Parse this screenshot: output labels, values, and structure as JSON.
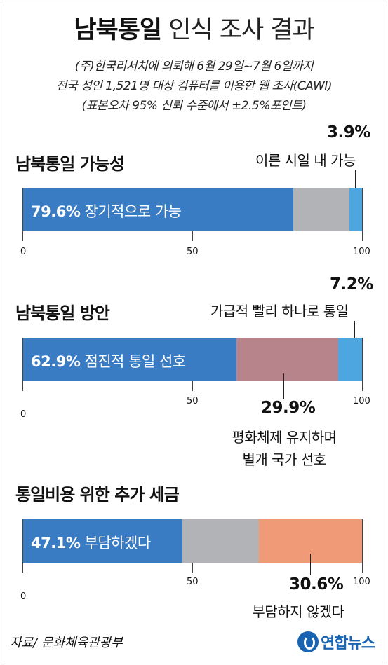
{
  "header": {
    "title_bold": "남북통일",
    "title_light": "인식 조사 결과",
    "subtitle_lines": [
      "(주)한국리서치에 의뢰해 6월 29일~7월 6일까지",
      "전국 성인 1,521명 대상 컴퓨터를 이용한 웹 조사(CAWI)",
      "(표본오차 95% 신뢰 수준에서 ±2.5%포인트)"
    ]
  },
  "colors": {
    "blue": "#3a7cc4",
    "gray": "#b1b3b6",
    "light_blue": "#4ea6e0",
    "mauve": "#b8848c",
    "salmon": "#f19a78"
  },
  "chart_data": [
    {
      "type": "bar",
      "orientation": "horizontal-stacked",
      "title": "남북통일 가능성",
      "xlim": [
        0,
        100
      ],
      "ticks": [
        "0",
        "50",
        "100"
      ],
      "segments": [
        {
          "name": "장기적으로 가능",
          "value": 79.6,
          "label": "79.6%",
          "color": "blue"
        },
        {
          "name": "",
          "value": 16.5,
          "label": "",
          "color": "gray"
        },
        {
          "name": "이른 시일 내 가능",
          "value": 3.9,
          "label": "3.9%",
          "color": "light_blue"
        }
      ]
    },
    {
      "type": "bar",
      "orientation": "horizontal-stacked",
      "title": "남북통일 방안",
      "xlim": [
        0,
        100
      ],
      "ticks": [
        "0",
        "50",
        "100"
      ],
      "segments": [
        {
          "name": "점진적 통일 선호",
          "value": 62.9,
          "label": "62.9%",
          "color": "blue"
        },
        {
          "name": "평화체제 유지하며 별개 국가 선호",
          "value": 29.9,
          "label": "29.9%",
          "color": "mauve"
        },
        {
          "name": "가급적 빨리 하나로 통일",
          "value": 7.2,
          "label": "7.2%",
          "color": "light_blue"
        }
      ]
    },
    {
      "type": "bar",
      "orientation": "horizontal-stacked",
      "title": "통일비용 위한 추가 세금",
      "xlim": [
        0,
        100
      ],
      "ticks": [
        "0",
        "50",
        "100"
      ],
      "segments": [
        {
          "name": "부담하겠다",
          "value": 47.1,
          "label": "47.1%",
          "color": "blue"
        },
        {
          "name": "",
          "value": 22.3,
          "label": "",
          "color": "gray"
        },
        {
          "name": "부담하지 않겠다",
          "value": 30.6,
          "label": "30.6%",
          "color": "salmon"
        }
      ]
    }
  ],
  "annotations": {
    "c1_right": {
      "value": "3.9%",
      "text": "이른 시일 내 가능"
    },
    "c2_right": {
      "value": "7.2%",
      "text": "가급적 빨리 하나로 통일"
    },
    "c2_bottom": {
      "value": "29.9%",
      "line1": "평화체제 유지하며",
      "line2": "별개 국가 선호"
    },
    "c3_bottom": {
      "value": "30.6%",
      "text": "부담하지 않겠다"
    }
  },
  "footer": {
    "source": "자료/ 문화체육관광부",
    "logo_text": "연합뉴스",
    "logo_icon": "yonhap-logo-icon"
  }
}
